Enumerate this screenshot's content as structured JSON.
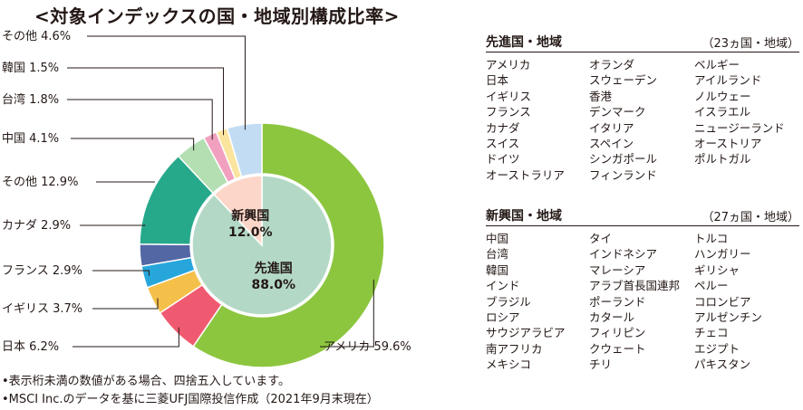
{
  "title": "<対象インデックスの国・地域別構成比率>",
  "chart_data": {
    "type": "pie",
    "title": "<対象インデックスの国・地域別構成比率>",
    "outer_ring": [
      {
        "label": "アメリカ",
        "value": 59.6,
        "text": "アメリカ 59.6%",
        "color": "#8cc63f"
      },
      {
        "label": "日本",
        "value": 6.2,
        "text": "日本 6.2%",
        "color": "#f05a70"
      },
      {
        "label": "イギリス",
        "value": 3.7,
        "text": "イギリス 3.7%",
        "color": "#f5c04a"
      },
      {
        "label": "フランス",
        "value": 2.9,
        "text": "フランス 2.9%",
        "color": "#27a6dc"
      },
      {
        "label": "カナダ",
        "value": 2.9,
        "text": "カナダ 2.9%",
        "color": "#5367a5"
      },
      {
        "label": "その他",
        "value": 12.9,
        "text": "その他 12.9%",
        "color": "#26a98b"
      },
      {
        "label": "中国",
        "value": 4.1,
        "text": "中国 4.1%",
        "color": "#b4dfb3"
      },
      {
        "label": "台湾",
        "value": 1.8,
        "text": "台湾 1.8%",
        "color": "#f2a0bf"
      },
      {
        "label": "韓国",
        "value": 1.5,
        "text": "韓国 1.5%",
        "color": "#fbe59e"
      },
      {
        "label": "その他",
        "value": 4.6,
        "text": "その他 4.6%",
        "color": "#c2dcf3"
      }
    ],
    "inner_pie": [
      {
        "label": "先進国",
        "value": 88.0,
        "text": "88.0%",
        "color": "#b3d9c6"
      },
      {
        "label": "新興国",
        "value": 12.0,
        "text": "12.0%",
        "color": "#fcd6c8"
      }
    ]
  },
  "developed": {
    "title": "先進国・地域",
    "count": "（23ヵ国・地域）",
    "col1": [
      "アメリカ",
      "日本",
      "イギリス",
      "フランス",
      "カナダ",
      "スイス",
      "ドイツ",
      "オーストラリア"
    ],
    "col2": [
      "オランダ",
      "スウェーデン",
      "香港",
      "デンマーク",
      "イタリア",
      "スペイン",
      "シンガポール",
      "フィンランド"
    ],
    "col3": [
      "ベルギー",
      "アイルランド",
      "ノルウェー",
      "イスラエル",
      "ニュージーランド",
      "オーストリア",
      "ポルトガル"
    ]
  },
  "emerging": {
    "title": "新興国・地域",
    "count": "（27ヵ国・地域）",
    "col1": [
      "中国",
      "台湾",
      "韓国",
      "インド",
      "ブラジル",
      "ロシア",
      "サウジアラビア",
      "南アフリカ",
      "メキシコ"
    ],
    "col2": [
      "タイ",
      "インドネシア",
      "マレーシア",
      "アラブ首長国連邦",
      "ポーランド",
      "カタール",
      "フィリピン",
      "クウェート",
      "チリ"
    ],
    "col3": [
      "トルコ",
      "ハンガリー",
      "ギリシャ",
      "ペルー",
      "コロンビア",
      "アルゼンチン",
      "チェコ",
      "エジプト",
      "パキスタン"
    ]
  },
  "notes": [
    "•表示桁未満の数値がある場合、四捨五入しています。",
    "•MSCI Inc.のデータを基に三菱UFJ国際投信作成（2021年9月末現在）"
  ]
}
